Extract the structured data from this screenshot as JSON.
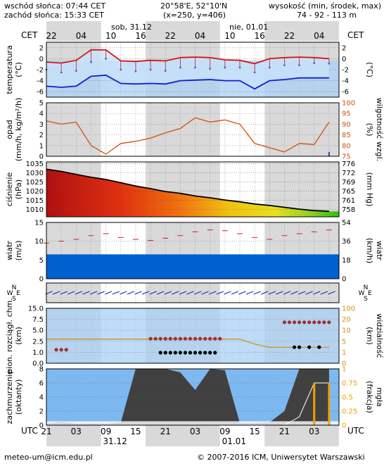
{
  "header": {
    "sunrise": "wschód słońca: 07:44 CET",
    "sunset": "zachód słońca: 15:33 CET",
    "coords": "20°58'E, 52°10'N",
    "grid": "(x=250,  y=406)",
    "elev_label": "wysokość (min, środek, max)",
    "elev_values": "74 - 92 - 113 m",
    "tz_left": "CET",
    "tz_right": "CET",
    "tz_bottom_left": "UTC",
    "tz_bottom_right": "UTC",
    "day1": "sob, 31.12",
    "day2": "nie, 01.01",
    "top_hours": [
      "22",
      "04",
      "10",
      "16",
      "22",
      "04",
      "10",
      "16",
      "22",
      "04"
    ],
    "bottom_hours": [
      "21",
      "03",
      "09",
      "15",
      "21",
      "03",
      "09",
      "15",
      "21",
      "03"
    ],
    "bottom_date1": "31.12",
    "bottom_date2": "01.01"
  },
  "footer": {
    "email": "meteo-um@icm.edu.pl",
    "copyright": "© 2007-2016 ICM, Uniwersytet Warszawski"
  },
  "panels": {
    "temp": {
      "ylabel": "temperatura",
      "yunit": "(°C)",
      "ryunit": "(°C)",
      "ticks": [
        "2",
        "0",
        "-2",
        "-4",
        "-6"
      ],
      "rticks": [
        "2",
        "0",
        "-2",
        "-4",
        "-6"
      ]
    },
    "precip": {
      "ylabel": "opad",
      "yunit": "(mm/h, kg/m²/h)",
      "rylabel": "wilgotność wzgl.",
      "ryunit": "(%)",
      "ticks": [
        "5",
        "4",
        "3",
        "2",
        "1",
        "0"
      ],
      "rticks": [
        "100",
        "95",
        "90",
        "85",
        "80",
        "75"
      ]
    },
    "press": {
      "ylabel": "ciśnienie",
      "yunit": "(hPa)",
      "ryunit": "(mm Hg)",
      "ticks": [
        "1035",
        "1030",
        "1025",
        "1020",
        "1015",
        "1010"
      ],
      "rticks": [
        "776",
        "772",
        "769",
        "765",
        "761",
        "758"
      ]
    },
    "wind": {
      "ylabel": "wiatr",
      "yunit": "(m/s)",
      "rylabel": "wiatr",
      "ryunit": "(km/h)",
      "ticks": [
        "15",
        "10",
        "5",
        "0"
      ],
      "rticks": [
        "54",
        "36",
        "18",
        "0"
      ]
    },
    "dir": {
      "labels": [
        "N",
        "W",
        "E",
        "S"
      ]
    },
    "cloud": {
      "ylabel": "pion. rozciągł. chm.",
      "yunit": "(km)",
      "rylabel": "widzialność",
      "ryunit": "(km)",
      "ticks": [
        "15.0",
        "7.5",
        "5.0",
        "2.5",
        "1.0",
        "0.0"
      ],
      "rticks": [
        "100",
        "20",
        "10",
        "5",
        "1",
        "0"
      ]
    },
    "cover": {
      "ylabel": "zachmurzenie",
      "yunit": "(oktanty)",
      "rylabel": "mgła",
      "ryunit": "(frakcja)",
      "ticks": [
        "8",
        "6",
        "4",
        "2",
        "0"
      ],
      "rticks": [
        "1",
        "0.75",
        "0.5",
        "0.25",
        "0"
      ]
    }
  },
  "chart_data": {
    "type": "line",
    "x_unit": "hour (UTC) from 21 UTC 30.12",
    "hours": [
      0,
      3,
      6,
      9,
      12,
      15,
      18,
      21,
      24,
      27,
      30,
      33,
      36,
      39,
      42,
      45,
      48,
      51,
      54,
      57
    ],
    "temperature": {
      "max": [
        -0.6,
        -0.8,
        -0.3,
        1.6,
        1.6,
        -0.4,
        -0.5,
        -0.3,
        -0.4,
        0.2,
        0.3,
        0.2,
        -0.2,
        -0.3,
        -0.9,
        0.0,
        0.2,
        0.3,
        0.2,
        0.0
      ],
      "mean": [
        -2.0,
        -2.5,
        -2.2,
        -0.6,
        0.0,
        -2.0,
        -2.3,
        -2.0,
        -2.2,
        -1.6,
        -1.6,
        -1.8,
        -1.6,
        -1.6,
        -2.5,
        -1.6,
        -1.2,
        -1.2,
        -0.8,
        -0.9
      ],
      "min": [
        -5.0,
        -5.2,
        -5.0,
        -3.2,
        -3.0,
        -4.5,
        -4.6,
        -4.5,
        -4.6,
        -4.0,
        -3.9,
        -3.8,
        -4.0,
        -4.0,
        -5.5,
        -4.0,
        -3.8,
        -3.5,
        -3.5,
        -3.5
      ]
    },
    "humidity": [
      91.5,
      90.0,
      91.0,
      80.0,
      76.0,
      81.0,
      82.0,
      83.5,
      86.0,
      88.0,
      93.0,
      91.0,
      92.0,
      90.0,
      81.0,
      79.0,
      77.0,
      81.0,
      80.5,
      91.0
    ],
    "precipitation": [
      0,
      0,
      0,
      0,
      0,
      0,
      0,
      0,
      0,
      0,
      0,
      0,
      0,
      0,
      0,
      0,
      0,
      0,
      0,
      0.4
    ],
    "pressure": [
      1032.0,
      1030.8,
      1029.2,
      1027.6,
      1026.4,
      1024.6,
      1022.8,
      1021.4,
      1019.8,
      1018.8,
      1017.4,
      1016.4,
      1015.2,
      1014.2,
      1013.0,
      1012.2,
      1011.2,
      1010.2,
      1009.4,
      1009.0
    ],
    "wind": [
      9.5,
      10.0,
      10.5,
      11.5,
      12.0,
      11.0,
      10.5,
      10.2,
      10.8,
      11.5,
      12.5,
      13.0,
      12.8,
      12.0,
      11.0,
      10.5,
      11.5,
      12.0,
      12.5,
      13.0
    ],
    "cloud_cover_total": [
      0.2,
      0.5,
      0.2,
      0.2,
      0.2,
      0.4,
      8,
      8,
      8,
      7.5,
      5,
      8,
      7.8,
      0.3,
      0.3,
      0.4,
      2,
      8,
      8,
      8
    ],
    "visibility_km": [
      5.0,
      5.0,
      5.0,
      5.0,
      5.0,
      5.0,
      5.0,
      5.0,
      5.0,
      5.0,
      5.0,
      5.0,
      5.0,
      5.0,
      4.0,
      2.8,
      2.8,
      2.8,
      2.8,
      2.8
    ],
    "fog_fraction": [
      0,
      0,
      0,
      0,
      0,
      0,
      0,
      0,
      0,
      0,
      0,
      0,
      0,
      0,
      0,
      0,
      0,
      0.15,
      0.75,
      0.75
    ]
  },
  "colors": {
    "night": "#d9d9d9",
    "day": "#ffffff",
    "panel_sky": "#a8cff4",
    "temp_max": "#d41414",
    "temp_min": "#1020d0",
    "humidity": "#d2500a",
    "wind_bar": "#0060d0",
    "cloud_dark": "#404040",
    "fog": "#f0a000"
  }
}
